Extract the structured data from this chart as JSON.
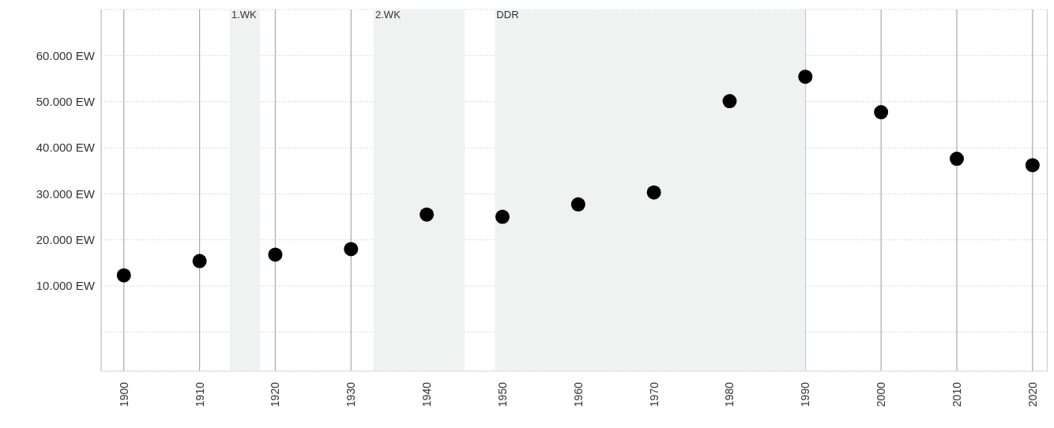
{
  "chart_data": {
    "type": "scatter",
    "x": [
      1900,
      1910,
      1920,
      1930,
      1940,
      1950,
      1960,
      1970,
      1980,
      1990,
      2000,
      2010,
      2020
    ],
    "series": [
      {
        "color": "#000000",
        "values": [
          12300,
          15400,
          16800,
          18000,
          25500,
          25000,
          27700,
          30300,
          50100,
          55400,
          47700,
          37600,
          36200
        ]
      }
    ],
    "xlim": [
      1897,
      2022
    ],
    "xticks": [
      1900,
      1910,
      1920,
      1930,
      1940,
      1950,
      1960,
      1970,
      1980,
      1990,
      2000,
      2010,
      2020
    ],
    "ylim": [
      -8500,
      70000
    ],
    "yticks": [
      {
        "value": 0,
        "label": null
      },
      {
        "value": 10000,
        "label": "10.000 EW"
      },
      {
        "value": 20000,
        "label": "20.000 EW"
      },
      {
        "value": 30000,
        "label": "30.000 EW"
      },
      {
        "value": 40000,
        "label": "40.000 EW"
      },
      {
        "value": 50000,
        "label": "50.000 EW"
      },
      {
        "value": 60000,
        "label": "60.000 EW"
      }
    ],
    "bands": [
      {
        "axis": "x",
        "from": 1914,
        "to": 1918,
        "label": "1.WK",
        "color": "#f0f1f1"
      },
      {
        "axis": "x",
        "from": 1933,
        "to": 1945,
        "label": "2.WK",
        "color": "#f0f1f1"
      },
      {
        "axis": "x",
        "from": 1949,
        "to": 1990,
        "label": "DDR",
        "color": "#f0f1f1"
      }
    ],
    "grid": true,
    "marker": "circle",
    "legend": false
  }
}
